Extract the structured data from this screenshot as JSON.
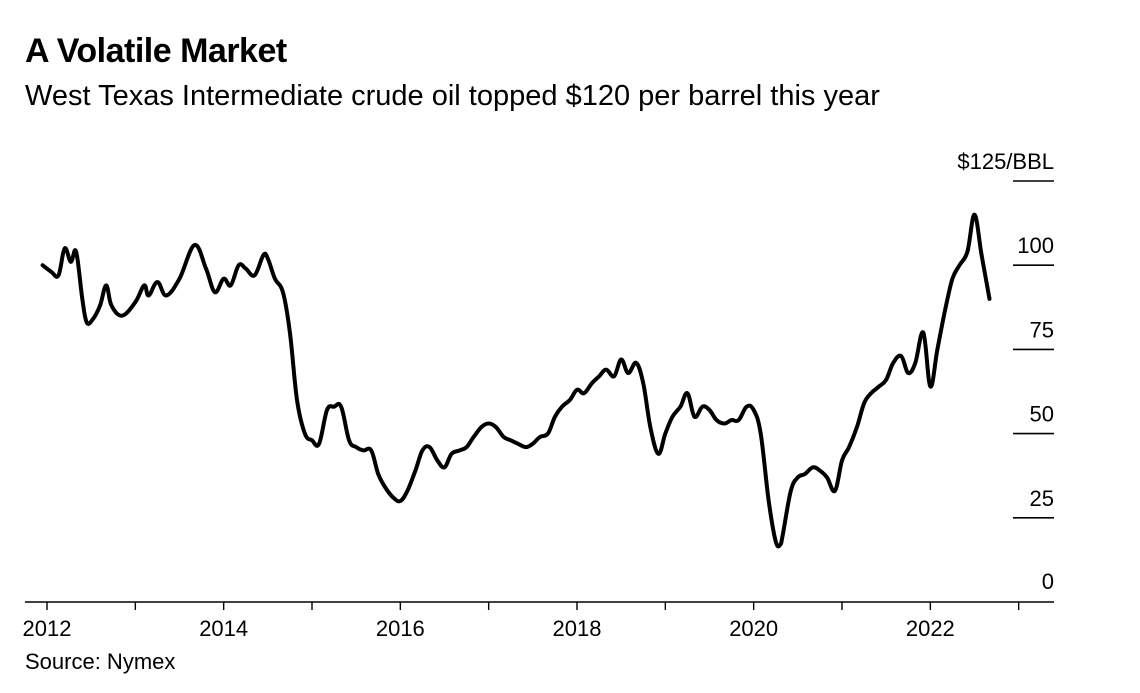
{
  "title": "A Volatile Market",
  "subtitle": "West Texas Intermediate crude oil topped $120 per barrel this year",
  "source": "Source: Nymex",
  "chart_data": {
    "type": "line",
    "title": "A Volatile Market",
    "subtitle": "West Texas Intermediate crude oil topped $120 per barrel this year",
    "xlabel": "",
    "ylabel": "",
    "y_unit_label": "$125/BBL",
    "ylim": [
      0,
      125
    ],
    "xlim": [
      2012.0,
      2023.4
    ],
    "y_axis_side": "right",
    "grid": false,
    "y_ticks": [
      {
        "value": 125,
        "label": "$125/BBL"
      },
      {
        "value": 100,
        "label": "100"
      },
      {
        "value": 75,
        "label": "75"
      },
      {
        "value": 50,
        "label": "50"
      },
      {
        "value": 25,
        "label": "25"
      },
      {
        "value": 0,
        "label": "0"
      }
    ],
    "x_ticks": [
      {
        "value": 2012,
        "label": "2012"
      },
      {
        "value": 2014,
        "label": "2014"
      },
      {
        "value": 2016,
        "label": "2016"
      },
      {
        "value": 2018,
        "label": "2018"
      },
      {
        "value": 2020,
        "label": "2020"
      },
      {
        "value": 2022,
        "label": "2022"
      }
    ],
    "x_minor_ticks": [
      2013,
      2015,
      2017,
      2019,
      2021,
      2023
    ],
    "series": [
      {
        "color": "#000000",
        "x": [
          2011.95,
          2012.05,
          2012.13,
          2012.2,
          2012.27,
          2012.33,
          2012.4,
          2012.45,
          2012.52,
          2012.6,
          2012.67,
          2012.73,
          2012.85,
          2013.0,
          2013.1,
          2013.15,
          2013.25,
          2013.35,
          2013.5,
          2013.67,
          2013.8,
          2013.9,
          2014.0,
          2014.08,
          2014.17,
          2014.25,
          2014.35,
          2014.45,
          2014.5,
          2014.58,
          2014.67,
          2014.75,
          2014.83,
          2014.92,
          2015.0,
          2015.08,
          2015.17,
          2015.25,
          2015.33,
          2015.42,
          2015.5,
          2015.58,
          2015.67,
          2015.75,
          2015.83,
          2015.92,
          2016.0,
          2016.08,
          2016.17,
          2016.25,
          2016.33,
          2016.42,
          2016.5,
          2016.58,
          2016.67,
          2016.75,
          2016.83,
          2016.92,
          2017.0,
          2017.08,
          2017.17,
          2017.25,
          2017.33,
          2017.42,
          2017.5,
          2017.58,
          2017.67,
          2017.75,
          2017.83,
          2017.92,
          2018.0,
          2018.08,
          2018.17,
          2018.25,
          2018.33,
          2018.42,
          2018.5,
          2018.58,
          2018.67,
          2018.75,
          2018.83,
          2018.92,
          2019.0,
          2019.08,
          2019.17,
          2019.25,
          2019.33,
          2019.42,
          2019.5,
          2019.58,
          2019.67,
          2019.75,
          2019.83,
          2019.92,
          2020.0,
          2020.08,
          2020.17,
          2020.25,
          2020.3,
          2020.33,
          2020.42,
          2020.5,
          2020.58,
          2020.67,
          2020.75,
          2020.83,
          2020.92,
          2021.0,
          2021.08,
          2021.17,
          2021.25,
          2021.33,
          2021.42,
          2021.5,
          2021.58,
          2021.67,
          2021.75,
          2021.83,
          2021.92,
          2022.0,
          2022.08,
          2022.17,
          2022.25,
          2022.33,
          2022.42,
          2022.5,
          2022.58,
          2022.67
        ],
        "values": [
          100,
          98,
          97,
          105,
          101,
          104,
          90,
          83,
          84,
          88,
          94,
          88,
          85,
          89,
          94,
          91,
          95,
          91,
          96,
          106,
          99,
          92,
          96,
          94,
          100,
          99,
          97,
          103,
          102,
          96,
          92,
          80,
          60,
          50,
          48,
          47,
          57,
          58,
          58,
          48,
          46,
          45,
          45,
          38,
          34,
          31,
          30,
          33,
          39,
          45,
          46,
          42,
          40,
          44,
          45,
          46,
          49,
          52,
          53,
          52,
          49,
          48,
          47,
          46,
          47,
          49,
          50,
          55,
          58,
          60,
          63,
          62,
          65,
          67,
          69,
          67,
          72,
          68,
          71,
          65,
          52,
          44,
          50,
          55,
          58,
          62,
          55,
          58,
          57,
          54,
          53,
          54,
          54,
          58,
          57,
          50,
          30,
          18,
          17,
          20,
          33,
          37,
          38,
          40,
          39,
          37,
          33,
          42,
          46,
          52,
          59,
          62,
          64,
          66,
          71,
          73,
          68,
          71,
          80,
          64,
          75,
          87,
          96,
          100,
          104,
          115,
          103,
          90
        ]
      }
    ]
  }
}
